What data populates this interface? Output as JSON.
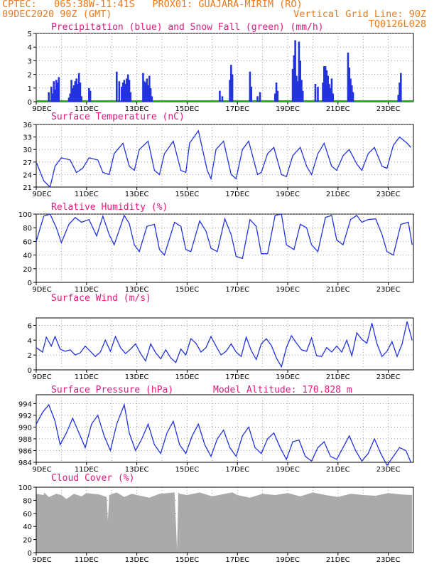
{
  "header": {
    "line1_left": "CPTEC:   065:38W-11:41S   PROX01: GUAJARA-MIRIM (RO)",
    "line2_left": "09DEC2020 90Z (GMT)",
    "line2_right": "Vertical Grid Line: 90Z",
    "line3_right": "TQ0126L028"
  },
  "colors": {
    "header": "#e87a1e",
    "title": "#e0197d",
    "line": "#2233dd",
    "snow": "#22aa22",
    "cloud": "#aaaaaa"
  },
  "x_ticks": [
    "9DEC",
    "11DEC",
    "13DEC",
    "15DEC",
    "17DEC",
    "19DEC",
    "21DEC",
    "23DEC"
  ],
  "chart_data": [
    {
      "id": "precip",
      "type": "bar",
      "title": "Precipitation (blue) and Snow Fall (green) (mm/h)",
      "ylim": [
        0,
        5
      ],
      "yticks": [
        0,
        1,
        2,
        3,
        4,
        5
      ],
      "x_unit": "days since 9DEC",
      "bars": [
        [
          0.5,
          0.7
        ],
        [
          0.6,
          1.1
        ],
        [
          0.65,
          0.6
        ],
        [
          0.7,
          1.5
        ],
        [
          0.75,
          0.9
        ],
        [
          0.8,
          1.6
        ],
        [
          0.85,
          1.4
        ],
        [
          0.9,
          1.8
        ],
        [
          1.3,
          0.3
        ],
        [
          1.35,
          0.6
        ],
        [
          1.4,
          1.6
        ],
        [
          1.45,
          1.0
        ],
        [
          1.5,
          1.2
        ],
        [
          1.55,
          1.5
        ],
        [
          1.6,
          1.7
        ],
        [
          1.65,
          1.3
        ],
        [
          1.7,
          2.1
        ],
        [
          1.75,
          1.4
        ],
        [
          1.8,
          0.4
        ],
        [
          2.1,
          1.0
        ],
        [
          2.15,
          0.8
        ],
        [
          3.2,
          2.2
        ],
        [
          3.3,
          1.5
        ],
        [
          3.4,
          1.1
        ],
        [
          3.45,
          1.4
        ],
        [
          3.5,
          1.6
        ],
        [
          3.55,
          1.3
        ],
        [
          3.6,
          1.7
        ],
        [
          3.65,
          2.0
        ],
        [
          3.7,
          1.6
        ],
        [
          3.75,
          0.7
        ],
        [
          4.25,
          2.1
        ],
        [
          4.3,
          1.5
        ],
        [
          4.35,
          1.4
        ],
        [
          4.4,
          1.7
        ],
        [
          4.45,
          1.2
        ],
        [
          4.5,
          1.9
        ],
        [
          4.55,
          1.0
        ],
        [
          4.6,
          0.4
        ],
        [
          7.3,
          0.8
        ],
        [
          7.4,
          0.4
        ],
        [
          7.7,
          1.6
        ],
        [
          7.75,
          2.7
        ],
        [
          7.8,
          2.0
        ],
        [
          8.5,
          2.2
        ],
        [
          8.55,
          1.1
        ],
        [
          8.8,
          0.4
        ],
        [
          8.9,
          0.7
        ],
        [
          9.5,
          0.6
        ],
        [
          9.55,
          1.4
        ],
        [
          9.6,
          0.8
        ],
        [
          10.2,
          2.4
        ],
        [
          10.25,
          3.4
        ],
        [
          10.3,
          4.5
        ],
        [
          10.35,
          1.9
        ],
        [
          10.4,
          1.5
        ],
        [
          10.45,
          4.4
        ],
        [
          10.5,
          3.0
        ],
        [
          10.55,
          1.6
        ],
        [
          10.6,
          0.8
        ],
        [
          11.1,
          1.3
        ],
        [
          11.2,
          1.1
        ],
        [
          11.4,
          1.4
        ],
        [
          11.45,
          2.6
        ],
        [
          11.5,
          2.6
        ],
        [
          11.55,
          2.3
        ],
        [
          11.6,
          1.9
        ],
        [
          11.65,
          1.3
        ],
        [
          11.7,
          1.0
        ],
        [
          11.75,
          1.7
        ],
        [
          11.8,
          0.6
        ],
        [
          12.4,
          3.6
        ],
        [
          12.45,
          2.5
        ],
        [
          12.5,
          1.7
        ],
        [
          12.55,
          1.2
        ],
        [
          12.6,
          0.7
        ],
        [
          14.4,
          0.5
        ],
        [
          14.45,
          1.4
        ],
        [
          14.5,
          2.1
        ]
      ]
    },
    {
      "id": "temp",
      "type": "line",
      "title": "Surface Temperature (nC)",
      "ylim": [
        21,
        36
      ],
      "yticks": [
        21,
        24,
        27,
        30,
        33,
        36
      ],
      "x": [
        0,
        0.3,
        0.55,
        0.75,
        1.0,
        1.35,
        1.6,
        1.85,
        2.1,
        2.45,
        2.65,
        2.9,
        3.1,
        3.45,
        3.7,
        3.9,
        4.1,
        4.45,
        4.7,
        4.9,
        5.1,
        5.45,
        5.75,
        5.95,
        6.1,
        6.45,
        6.8,
        6.95,
        7.15,
        7.45,
        7.75,
        7.95,
        8.2,
        8.45,
        8.8,
        8.95,
        9.2,
        9.45,
        9.75,
        9.95,
        10.2,
        10.5,
        10.75,
        10.95,
        11.2,
        11.45,
        11.75,
        11.95,
        12.2,
        12.45,
        12.75,
        12.95,
        13.2,
        13.45,
        13.75,
        13.95,
        14.2,
        14.45,
        14.75,
        14.9
      ],
      "y": [
        27,
        22.5,
        21,
        26,
        28,
        27.5,
        24.5,
        25.5,
        28,
        27.5,
        24.5,
        24,
        29,
        31.5,
        26,
        25,
        30,
        32,
        25,
        24,
        29,
        32,
        25,
        24.5,
        31.5,
        34.5,
        25,
        23,
        30,
        32,
        24,
        23,
        30,
        32,
        24,
        24.5,
        29,
        30.5,
        24,
        23.5,
        28.5,
        30.5,
        26,
        24,
        29,
        31.5,
        26,
        25,
        28.5,
        30,
        26.5,
        25,
        29,
        30.5,
        26,
        25.5,
        31,
        33,
        31.5,
        30.5
      ]
    },
    {
      "id": "rh",
      "type": "line",
      "title": "Relative Humidity (%)",
      "ylim": [
        0,
        100
      ],
      "yticks": [
        0,
        20,
        40,
        60,
        80,
        100
      ],
      "x": [
        0,
        0.3,
        0.55,
        0.8,
        1.0,
        1.3,
        1.55,
        1.8,
        2.1,
        2.4,
        2.65,
        2.9,
        3.1,
        3.5,
        3.7,
        3.9,
        4.1,
        4.4,
        4.7,
        4.9,
        5.1,
        5.5,
        5.75,
        5.95,
        6.15,
        6.5,
        6.75,
        6.95,
        7.2,
        7.5,
        7.75,
        7.95,
        8.2,
        8.5,
        8.75,
        8.95,
        9.2,
        9.5,
        9.75,
        9.95,
        10.25,
        10.5,
        10.75,
        10.95,
        11.2,
        11.5,
        11.75,
        11.95,
        12.2,
        12.5,
        12.75,
        12.95,
        13.2,
        13.5,
        13.75,
        13.95,
        14.2,
        14.5,
        14.8,
        14.95
      ],
      "y": [
        60,
        97,
        100,
        80,
        58,
        85,
        95,
        88,
        92,
        68,
        97,
        70,
        55,
        98,
        86,
        55,
        45,
        82,
        85,
        48,
        40,
        88,
        82,
        48,
        45,
        90,
        75,
        50,
        45,
        93,
        70,
        38,
        35,
        92,
        82,
        42,
        42,
        98,
        100,
        55,
        48,
        85,
        80,
        55,
        45,
        95,
        98,
        62,
        55,
        92,
        98,
        88,
        92,
        93,
        70,
        45,
        40,
        85,
        88,
        55
      ]
    },
    {
      "id": "wind",
      "type": "line",
      "title": "Surface Wind (m/s)",
      "ylim": [
        0,
        7
      ],
      "yticks": [
        0,
        2,
        4,
        6
      ],
      "x": [
        0,
        0.25,
        0.4,
        0.6,
        0.75,
        0.95,
        1.15,
        1.35,
        1.55,
        1.75,
        1.95,
        2.15,
        2.35,
        2.55,
        2.75,
        2.95,
        3.15,
        3.35,
        3.55,
        3.75,
        3.95,
        4.15,
        4.35,
        4.55,
        4.75,
        4.95,
        5.15,
        5.35,
        5.55,
        5.75,
        5.95,
        6.15,
        6.35,
        6.55,
        6.75,
        6.95,
        7.15,
        7.35,
        7.55,
        7.75,
        7.95,
        8.15,
        8.35,
        8.55,
        8.75,
        8.95,
        9.15,
        9.35,
        9.55,
        9.75,
        9.95,
        10.15,
        10.35,
        10.55,
        10.75,
        10.95,
        11.15,
        11.35,
        11.55,
        11.75,
        11.95,
        12.15,
        12.35,
        12.55,
        12.75,
        12.95,
        13.15,
        13.35,
        13.55,
        13.75,
        13.95,
        14.15,
        14.35,
        14.55,
        14.75,
        14.95
      ],
      "y": [
        3.0,
        2.4,
        4.4,
        3.2,
        4.5,
        2.8,
        2.5,
        2.7,
        2.0,
        2.3,
        3.2,
        2.5,
        1.8,
        2.4,
        4.0,
        2.5,
        4.5,
        3.0,
        2.2,
        2.8,
        3.5,
        2.2,
        1.2,
        3.5,
        2.3,
        1.5,
        2.7,
        1.6,
        1.0,
        2.8,
        2.0,
        4.2,
        3.6,
        2.4,
        3.0,
        4.5,
        3.2,
        2.0,
        2.5,
        3.5,
        2.4,
        1.8,
        4.4,
        2.6,
        1.4,
        3.5,
        4.2,
        3.3,
        1.6,
        0.4,
        3.0,
        4.6,
        3.6,
        2.7,
        2.5,
        4.3,
        1.9,
        1.8,
        3.0,
        2.4,
        3.2,
        2.4,
        4.0,
        1.9,
        5.0,
        4.1,
        3.6,
        6.3,
        3.5,
        1.8,
        2.5,
        3.8,
        1.8,
        3.5,
        6.5,
        4.0
      ]
    },
    {
      "id": "pres",
      "type": "line",
      "title": "Surface Pressure (hPa)",
      "subtitle": "Model Altitude: 170.828  m",
      "ylim": [
        984,
        995.5
      ],
      "yticks": [
        984,
        986,
        988,
        990,
        992,
        994
      ],
      "x": [
        0,
        0.25,
        0.5,
        0.75,
        0.95,
        1.2,
        1.45,
        1.7,
        1.95,
        2.2,
        2.45,
        2.7,
        2.95,
        3.2,
        3.5,
        3.7,
        3.95,
        4.2,
        4.45,
        4.7,
        4.95,
        5.2,
        5.45,
        5.7,
        5.95,
        6.2,
        6.45,
        6.7,
        6.95,
        7.2,
        7.45,
        7.7,
        7.95,
        8.2,
        8.45,
        8.7,
        8.95,
        9.2,
        9.45,
        9.7,
        9.95,
        10.2,
        10.45,
        10.7,
        10.95,
        11.2,
        11.45,
        11.7,
        11.95,
        12.2,
        12.45,
        12.7,
        12.95,
        13.2,
        13.45,
        13.7,
        13.95,
        14.2,
        14.45,
        14.7,
        14.9
      ],
      "y": [
        990.5,
        992.5,
        993.8,
        991,
        987,
        989,
        991.5,
        989,
        986.5,
        990.5,
        992,
        988.5,
        986,
        990.5,
        993.8,
        989,
        986,
        988,
        990.5,
        987,
        985.5,
        989,
        991,
        987,
        985.5,
        988.5,
        990.5,
        987,
        985,
        988,
        989.5,
        986.5,
        985,
        988.5,
        990,
        986.5,
        985.5,
        988,
        989,
        986.5,
        984.5,
        987.5,
        987.8,
        985,
        984.2,
        986.5,
        987.5,
        985,
        984.5,
        986.5,
        988.5,
        986,
        984.2,
        985.5,
        988,
        985.5,
        983.5,
        985,
        986.5,
        986,
        984
      ]
    },
    {
      "id": "cloud",
      "type": "area",
      "title": "Cloud Cover (%)",
      "ylim": [
        0,
        100
      ],
      "yticks": [
        0,
        20,
        40,
        60,
        80,
        100
      ],
      "x": [
        0,
        0.3,
        0.31,
        0.5,
        0.8,
        1.0,
        1.2,
        1.5,
        1.8,
        2.0,
        2.5,
        2.8,
        2.85,
        2.9,
        3.2,
        3.5,
        3.8,
        4.0,
        4.5,
        4.9,
        5.5,
        5.6,
        5.65,
        5.7,
        6.0,
        6.5,
        7.0,
        7.5,
        7.8,
        8.0,
        8.5,
        9.0,
        9.5,
        10.0,
        10.5,
        11.0,
        11.5,
        12.0,
        12.5,
        13.0,
        13.5,
        14.0,
        14.5,
        14.95
      ],
      "y": [
        90,
        88,
        92,
        85,
        90,
        88,
        82,
        90,
        86,
        91,
        89,
        85,
        48,
        88,
        92,
        85,
        90,
        88,
        84,
        90,
        92,
        5,
        92,
        90,
        88,
        92,
        86,
        90,
        92,
        88,
        84,
        90,
        88,
        91,
        86,
        92,
        88,
        85,
        90,
        88,
        87,
        91,
        89,
        88
      ]
    }
  ]
}
